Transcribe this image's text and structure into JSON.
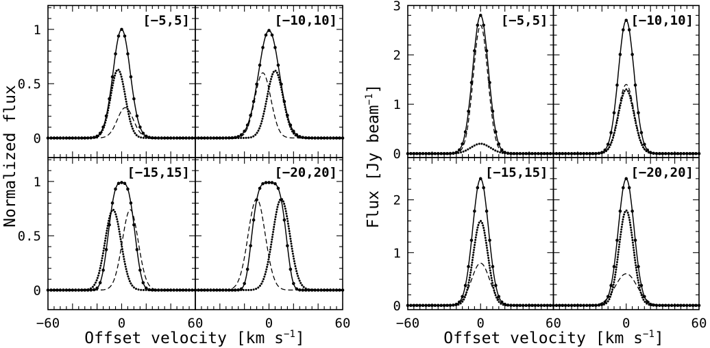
{
  "figure": {
    "left_ylabel": "Normalized flux",
    "right_ylabel_main": "Flux [Jy beam",
    "right_ylabel_sup": "−1",
    "right_ylabel_end": "]",
    "xlabel_main": "Offset velocity [km s",
    "xlabel_sup": "−1",
    "xlabel_end": "]"
  },
  "chart_data": [
    {
      "type": "line",
      "group": "left",
      "position": "top-left",
      "label": "[−5,5]",
      "xlim": [
        -60,
        60
      ],
      "ylim": [
        -0.18,
        1.22
      ],
      "yticks": [
        0,
        0.5,
        1
      ],
      "ytick_labels": [
        "0",
        "0.5",
        "1"
      ],
      "xticks": [],
      "xtick_labels": [],
      "series": [
        {
          "name": "total",
          "style": "solid-markers",
          "amp": 1.0,
          "center": 0,
          "sigma": 7
        },
        {
          "name": "dotted",
          "style": "dotted",
          "amp": 0.63,
          "center": -3,
          "sigma": 6
        },
        {
          "name": "dashed",
          "style": "dashed",
          "amp": 0.28,
          "center": 3,
          "sigma": 6.5
        }
      ]
    },
    {
      "type": "line",
      "group": "left",
      "position": "top-right",
      "label": "[−10,10]",
      "xlim": [
        -60,
        60
      ],
      "ylim": [
        -0.18,
        1.22
      ],
      "yticks": [
        0,
        0.5,
        1
      ],
      "ytick_labels": [],
      "xticks": [],
      "xtick_labels": [],
      "series": [
        {
          "name": "total",
          "style": "solid-markers",
          "amp": 0.99,
          "center": 0,
          "sigma": 8.5
        },
        {
          "name": "dotted",
          "style": "dotted",
          "amp": 0.62,
          "center": 5,
          "sigma": 6.5
        },
        {
          "name": "dashed",
          "style": "dashed",
          "amp": 0.6,
          "center": -5,
          "sigma": 6.5
        }
      ]
    },
    {
      "type": "line",
      "group": "left",
      "position": "bottom-left",
      "label": "[−15,15]",
      "xlim": [
        -60,
        60
      ],
      "ylim": [
        -0.18,
        1.22
      ],
      "yticks": [
        0,
        0.5,
        1
      ],
      "ytick_labels": [
        "0",
        "0.5",
        "1"
      ],
      "xticks": [
        -60,
        0,
        60
      ],
      "xtick_labels": [
        "−60",
        "0",
        "60"
      ],
      "series": [
        {
          "name": "total",
          "style": "solid-markers",
          "amp": 0.99,
          "center": 0,
          "sigma": 10,
          "power": 3
        },
        {
          "name": "dotted",
          "style": "dotted",
          "amp": 0.74,
          "center": -7,
          "sigma": 6.5
        },
        {
          "name": "dashed",
          "style": "dashed",
          "amp": 0.74,
          "center": 7,
          "sigma": 6.5
        }
      ]
    },
    {
      "type": "line",
      "group": "left",
      "position": "bottom-right",
      "label": "[−20,20]",
      "xlim": [
        -60,
        60
      ],
      "ylim": [
        -0.18,
        1.22
      ],
      "yticks": [
        0,
        0.5,
        1
      ],
      "ytick_labels": [],
      "xticks": [
        -60,
        0,
        60
      ],
      "xtick_labels": [
        "",
        "0",
        "60"
      ],
      "series": [
        {
          "name": "total",
          "style": "solid-markers",
          "amp": 0.99,
          "center": 0,
          "sigma": 13,
          "power": 4
        },
        {
          "name": "dotted",
          "style": "dotted",
          "amp": 0.84,
          "center": 10,
          "sigma": 7
        },
        {
          "name": "dashed",
          "style": "dashed",
          "amp": 0.84,
          "center": -10,
          "sigma": 7
        }
      ]
    },
    {
      "type": "line",
      "group": "right",
      "position": "top-left",
      "label": "[−5,5]",
      "xlim": [
        -60,
        60
      ],
      "ylim": [
        -0.08,
        3.0
      ],
      "yticks": [
        0,
        1,
        2,
        3
      ],
      "ytick_labels": [
        "0",
        "1",
        "2",
        "3"
      ],
      "xticks": [],
      "xtick_labels": [],
      "series": [
        {
          "name": "total",
          "style": "solid-markers",
          "amp": 2.8,
          "center": 0,
          "sigma": 6.5
        },
        {
          "name": "dashed",
          "style": "dashed",
          "amp": 2.6,
          "center": 0,
          "sigma": 6
        },
        {
          "name": "dotted",
          "style": "dotted",
          "amp": 0.2,
          "center": 0,
          "sigma": 8
        }
      ]
    },
    {
      "type": "line",
      "group": "right",
      "position": "top-right",
      "label": "[−10,10]",
      "xlim": [
        -60,
        60
      ],
      "ylim": [
        -0.08,
        3.0
      ],
      "yticks": [
        0,
        1,
        2,
        3
      ],
      "ytick_labels": [],
      "xticks": [],
      "xtick_labels": [],
      "series": [
        {
          "name": "total",
          "style": "solid-markers",
          "amp": 2.7,
          "center": 0,
          "sigma": 6.5
        },
        {
          "name": "dashed",
          "style": "dashed",
          "amp": 1.4,
          "center": 0,
          "sigma": 6.5
        },
        {
          "name": "dotted",
          "style": "dotted",
          "amp": 1.3,
          "center": 0,
          "sigma": 6.5
        }
      ]
    },
    {
      "type": "line",
      "group": "right",
      "position": "bottom-left",
      "label": "[−15,15]",
      "xlim": [
        -60,
        60
      ],
      "ylim": [
        -0.08,
        2.8
      ],
      "yticks": [
        0,
        1,
        2
      ],
      "ytick_labels": [
        "0",
        "1",
        "2"
      ],
      "xticks": [
        -60,
        0,
        60
      ],
      "xtick_labels": [
        "−60",
        "0",
        "60"
      ],
      "series": [
        {
          "name": "total",
          "style": "solid-markers",
          "amp": 2.4,
          "center": 0,
          "sigma": 6.5
        },
        {
          "name": "dotted",
          "style": "dotted",
          "amp": 1.6,
          "center": 0,
          "sigma": 6
        },
        {
          "name": "dashed",
          "style": "dashed",
          "amp": 0.8,
          "center": 0,
          "sigma": 7.5
        }
      ]
    },
    {
      "type": "line",
      "group": "right",
      "position": "bottom-right",
      "label": "[−20,20]",
      "xlim": [
        -60,
        60
      ],
      "ylim": [
        -0.08,
        2.8
      ],
      "yticks": [
        0,
        1,
        2
      ],
      "ytick_labels": [],
      "xticks": [
        -60,
        0,
        60
      ],
      "xtick_labels": [
        "",
        "0",
        "60"
      ],
      "series": [
        {
          "name": "total",
          "style": "solid-markers",
          "amp": 2.4,
          "center": 0,
          "sigma": 6.5
        },
        {
          "name": "dotted",
          "style": "dotted",
          "amp": 1.8,
          "center": 0,
          "sigma": 6
        },
        {
          "name": "dashed",
          "style": "dashed",
          "amp": 0.6,
          "center": 0,
          "sigma": 9
        }
      ]
    }
  ]
}
